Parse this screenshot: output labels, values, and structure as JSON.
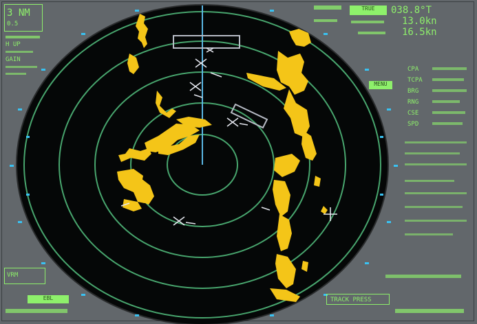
{
  "colors": {
    "background": "#62676b",
    "panel_text": "#8ef06b",
    "scope": "#050707",
    "range_ring": "#48a66e",
    "echo": "#f4c518",
    "heading_line": "#5ab7e4",
    "bearing_scale": "#39c2f2",
    "symbol": "#e6e8f0"
  },
  "icons": {
    "target": "target-vector-icon",
    "ebl": "ebl-cross-icon"
  },
  "right_panel": {
    "heading_value": "038.8°T",
    "speed_value": "16.5kn",
    "course_value": "13.0kn",
    "menu_label": "MENU",
    "mode_label": "TRUE",
    "readouts": [
      "CPA",
      "TCPA",
      "BRG",
      "RNG",
      "CSE",
      "SPD"
    ]
  },
  "left_panel": {
    "range_label": "3 NM",
    "rings_label": "0.5",
    "mode_label": "H UP",
    "gain_label": "GAIN",
    "bottom_labels": [
      "VRM",
      "EBL"
    ]
  },
  "bottom_right": {
    "alarm_label": "TRACK PRESS"
  }
}
